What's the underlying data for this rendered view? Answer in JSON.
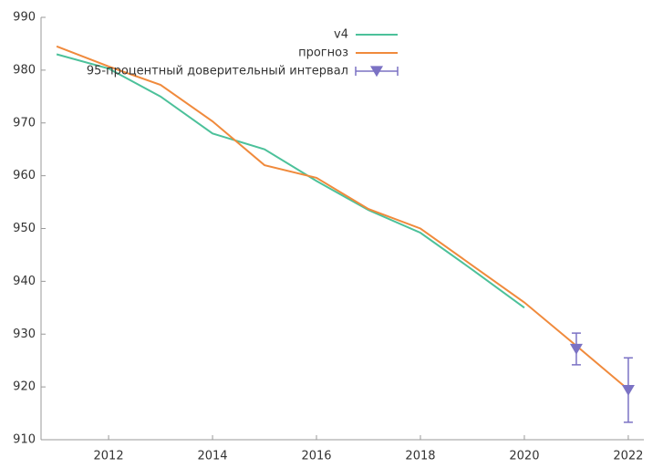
{
  "chart_data": {
    "type": "line",
    "x": [
      2011,
      2012,
      2013,
      2014,
      2015,
      2016,
      2017,
      2018,
      2019,
      2020,
      2021,
      2022
    ],
    "series": [
      {
        "name": "v4",
        "color": "#4cc19a",
        "values": [
          983,
          980.3,
          975,
          968,
          965,
          959,
          953.5,
          949.2,
          942.2,
          935,
          null,
          null
        ]
      },
      {
        "name": "прогноз",
        "color": "#f08a3c",
        "values": [
          984.5,
          980.7,
          977.2,
          970.3,
          962,
          959.6,
          953.7,
          950,
          943,
          936,
          927.8,
          919.5
        ]
      },
      {
        "name": "95-процентный доверительный интервал",
        "color": "#7b72c4",
        "values": [
          null,
          null,
          null,
          null,
          null,
          null,
          null,
          null,
          null,
          null,
          927.2,
          919.4
        ],
        "errors": [
          null,
          null,
          null,
          null,
          null,
          null,
          null,
          null,
          null,
          null,
          3,
          6.1
        ]
      }
    ],
    "xlim": [
      2010.7,
      2022.3
    ],
    "xticks": [
      2012,
      2014,
      2016,
      2018,
      2020,
      2022
    ],
    "ylim": [
      910,
      990
    ],
    "yticks": [
      910,
      920,
      930,
      940,
      950,
      960,
      970,
      980,
      990
    ],
    "grid": false,
    "legend": "upper right"
  }
}
